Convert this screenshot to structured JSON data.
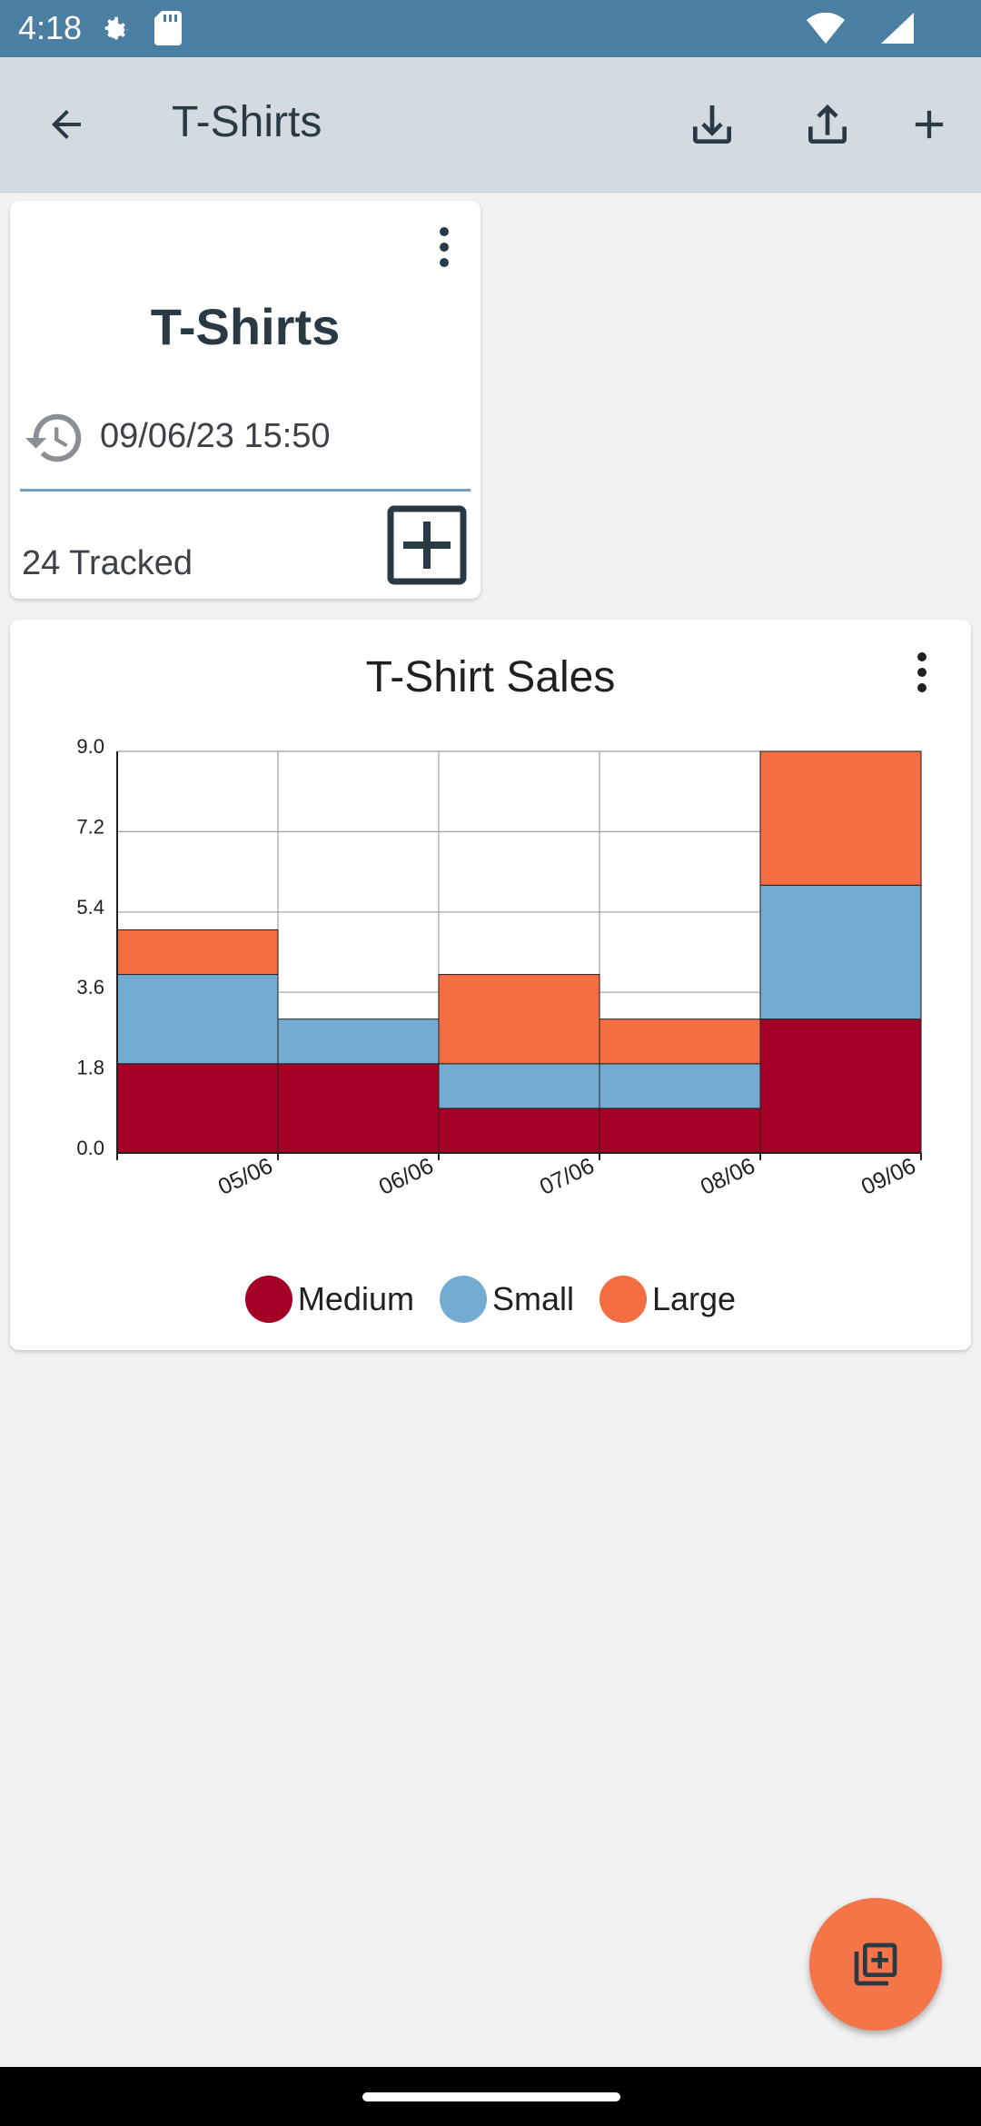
{
  "status_bar": {
    "time": "4:18"
  },
  "app_bar": {
    "title": "T-Shirts"
  },
  "tracker_card": {
    "name": "T-Shirts",
    "last_date": "09/06/23  15:50",
    "tracked_label": "24 Tracked"
  },
  "chart_card": {
    "title": "T-Shirt Sales"
  },
  "chart_data": {
    "type": "bar",
    "stacked": true,
    "title": "T-Shirt Sales",
    "categories": [
      "05/06",
      "06/06",
      "07/06",
      "08/06",
      "09/06"
    ],
    "series": [
      {
        "name": "Medium",
        "color": "#a50026",
        "values": [
          2,
          2,
          1,
          1,
          3
        ]
      },
      {
        "name": "Small",
        "color": "#74acd1",
        "values": [
          2,
          1,
          1,
          1,
          3
        ]
      },
      {
        "name": "Large",
        "color": "#f46d43",
        "values": [
          1,
          0,
          2,
          1,
          3
        ]
      }
    ],
    "ylim": [
      0,
      9
    ],
    "yticks": [
      "0.0",
      "1.8",
      "3.6",
      "5.4",
      "7.2",
      "9.0"
    ],
    "grid": true,
    "legend_position": "bottom"
  },
  "icons": {
    "back": "arrow-left-icon",
    "import": "download-icon",
    "export": "upload-icon",
    "add": "plus-icon",
    "history": "history-icon",
    "fab": "add-collection-icon"
  }
}
